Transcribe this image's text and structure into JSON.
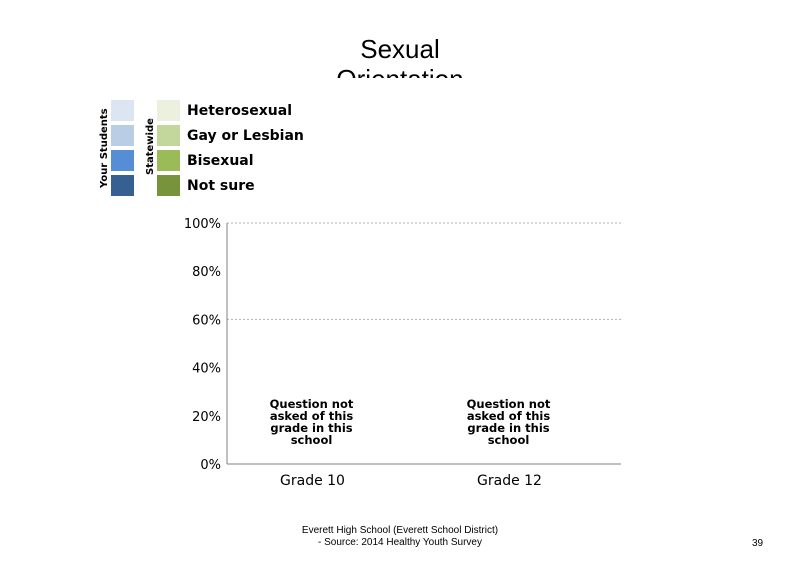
{
  "chart_data": {
    "type": "bar",
    "title": "Sexual Orientation",
    "legend": {
      "your_students_label": "Your Students",
      "statewide_label": "Statewide",
      "your_students_colors": [
        "#dce6f2",
        "#b9cde5",
        "#558ed5",
        "#376092"
      ],
      "statewide_colors": [
        "#ebf1de",
        "#c3d69b",
        "#9bbb59",
        "#77933c"
      ],
      "entries": [
        "Heterosexual",
        "Gay or Lesbian",
        "Bisexual",
        "Not sure"
      ]
    },
    "categories": [
      "Grade 10",
      "Grade 12"
    ],
    "category_notes": [
      "Question not asked of this grade in this school",
      "Question not asked of this grade in this school"
    ],
    "series": [
      {
        "name": "Heterosexual",
        "values": [
          null,
          null
        ]
      },
      {
        "name": "Gay or Lesbian",
        "values": [
          null,
          null
        ]
      },
      {
        "name": "Bisexual",
        "values": [
          null,
          null
        ]
      },
      {
        "name": "Not sure",
        "values": [
          null,
          null
        ]
      }
    ],
    "yticks": [
      "0%",
      "20%",
      "40%",
      "60%",
      "80%",
      "100%"
    ],
    "ylim": [
      0,
      100
    ],
    "grid": [
      60,
      100
    ]
  },
  "footer": {
    "line1": "Everett High  School (Everett School District)",
    "line2": "- Source: 2014 Healthy  Youth Survey"
  },
  "page_number": "39"
}
